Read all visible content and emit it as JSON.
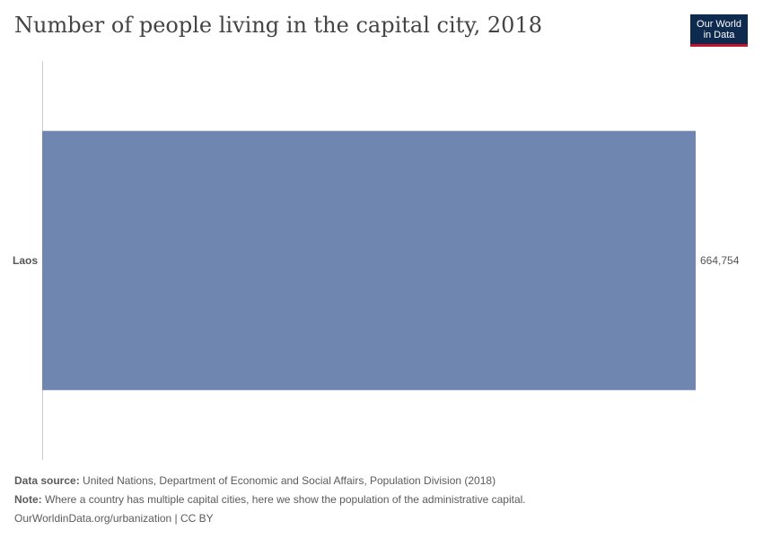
{
  "title": "Number of people living in the capital city, 2018",
  "logo": {
    "line1": "Our World",
    "line2": "in Data"
  },
  "chart_data": {
    "type": "bar",
    "orientation": "horizontal",
    "categories": [
      "Laos"
    ],
    "values": [
      664754
    ],
    "value_labels": [
      "664,754"
    ],
    "bar_color": "#6f87b0",
    "xlim": [
      0,
      664754
    ],
    "grid": false
  },
  "footer": {
    "source_label": "Data source:",
    "source_text": "United Nations, Department of Economic and Social Affairs, Population Division (2018)",
    "note_label": "Note:",
    "note_text": "Where a country has multiple capital cities, here we show the population of the administrative capital.",
    "url_text": "OurWorldinData.org/urbanization | CC BY"
  }
}
